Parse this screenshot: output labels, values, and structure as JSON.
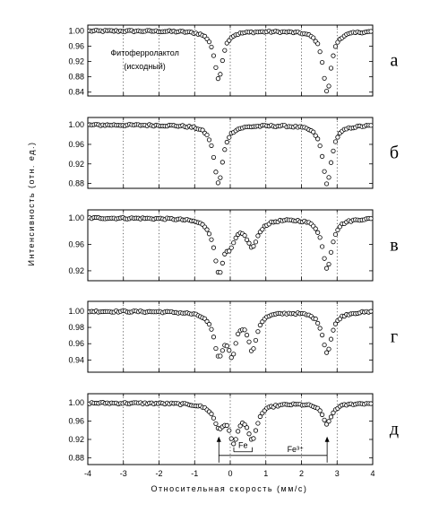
{
  "figure": {
    "ylabel": "Интенсивность (отн. ед.)",
    "xlabel": "Относительная скорость (мм/с)"
  },
  "chart_data": [
    {
      "type": "scatter",
      "panel_label": "а",
      "annotation": "Фитоферролактол\n(исходный)",
      "xlim": [
        -4,
        4
      ],
      "ylim": [
        0.83,
        1.015
      ],
      "yticks": [
        1.0,
        0.96,
        0.92,
        0.88,
        0.84
      ],
      "ytick_labels": [
        "1.00",
        "0.96",
        "0.92",
        "0.88",
        "0.84"
      ],
      "grid": "dotted-vertical",
      "series": [
        {
          "model": "sum-of-lorentzians",
          "baseline": 1.0,
          "lines": [
            {
              "center": -0.33,
              "width": 0.28,
              "depth": 0.125
            },
            {
              "center": 2.72,
              "width": 0.28,
              "depth": 0.16
            }
          ]
        }
      ]
    },
    {
      "type": "scatter",
      "panel_label": "б",
      "xlim": [
        -4,
        4
      ],
      "ylim": [
        0.87,
        1.015
      ],
      "yticks": [
        1.0,
        0.96,
        0.92,
        0.88
      ],
      "ytick_labels": [
        "1.00",
        "0.96",
        "0.92",
        "0.88"
      ],
      "grid": "dotted-vertical",
      "series": [
        {
          "model": "sum-of-lorentzians",
          "baseline": 1.0,
          "lines": [
            {
              "center": -0.33,
              "width": 0.3,
              "depth": 0.12
            },
            {
              "center": 2.72,
              "width": 0.3,
              "depth": 0.12
            }
          ]
        }
      ]
    },
    {
      "type": "scatter",
      "panel_label": "в",
      "xlim": [
        -4,
        4
      ],
      "ylim": [
        0.905,
        1.012
      ],
      "yticks": [
        1.0,
        0.96,
        0.92
      ],
      "ytick_labels": [
        "1.00",
        "0.96",
        "0.92"
      ],
      "grid": "dotted-vertical",
      "series": [
        {
          "model": "sum-of-lorentzians",
          "baseline": 1.0,
          "lines": [
            {
              "center": -0.32,
              "width": 0.32,
              "depth": 0.075
            },
            {
              "center": 0.0,
              "width": 0.35,
              "depth": 0.03
            },
            {
              "center": 0.62,
              "width": 0.4,
              "depth": 0.04
            },
            {
              "center": 2.72,
              "width": 0.32,
              "depth": 0.075
            }
          ]
        }
      ]
    },
    {
      "type": "scatter",
      "panel_label": "г",
      "xlim": [
        -4,
        4
      ],
      "ylim": [
        0.925,
        1.012
      ],
      "yticks": [
        1.0,
        0.98,
        0.96,
        0.94
      ],
      "ytick_labels": [
        "1.00",
        "0.98",
        "0.96",
        "0.94"
      ],
      "grid": "dotted-vertical",
      "series": [
        {
          "model": "sum-of-lorentzians",
          "baseline": 1.0,
          "lines": [
            {
              "center": -0.32,
              "width": 0.34,
              "depth": 0.05
            },
            {
              "center": 0.05,
              "width": 0.28,
              "depth": 0.045
            },
            {
              "center": 0.62,
              "width": 0.3,
              "depth": 0.045
            },
            {
              "center": 2.72,
              "width": 0.32,
              "depth": 0.05
            }
          ]
        }
      ]
    },
    {
      "type": "scatter",
      "panel_label": "д",
      "xlim": [
        -4,
        4
      ],
      "ylim": [
        0.865,
        1.02
      ],
      "yticks": [
        1.0,
        0.96,
        0.92,
        0.88
      ],
      "ytick_labels": [
        "1.00",
        "0.96",
        "0.92",
        "0.88"
      ],
      "xticks": [
        -4,
        -3,
        -2,
        -1,
        0,
        1,
        2,
        3,
        4
      ],
      "xtick_labels": [
        "-4",
        "-3",
        "-2",
        "-1",
        "0",
        "1",
        "2",
        "3",
        "4"
      ],
      "grid": "dotted-vertical",
      "series": [
        {
          "model": "sum-of-lorentzians",
          "baseline": 1.0,
          "lines": [
            {
              "center": -0.32,
              "width": 0.35,
              "depth": 0.045
            },
            {
              "center": 0.1,
              "width": 0.32,
              "depth": 0.075
            },
            {
              "center": 0.62,
              "width": 0.32,
              "depth": 0.075
            },
            {
              "center": 2.72,
              "width": 0.32,
              "depth": 0.045
            }
          ]
        }
      ],
      "annotations": [
        {
          "label": "Fe",
          "from": 0.1,
          "to": 0.62,
          "y": 0.893
        },
        {
          "label": "Fe³⁺",
          "from": -0.32,
          "to": 2.72,
          "y": 0.885
        }
      ]
    }
  ]
}
